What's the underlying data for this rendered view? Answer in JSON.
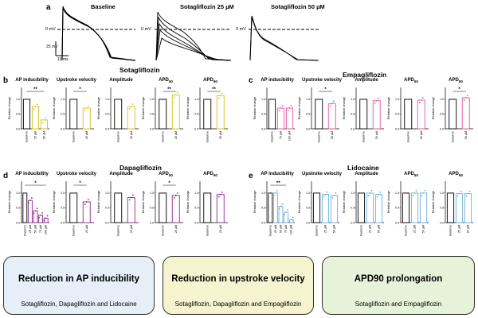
{
  "panel_a": {
    "label": "a",
    "traces": [
      "Baseline",
      "Sotagliflozin 25 µM",
      "Sotagliflozin 50 µM"
    ],
    "zero_mv": "0 mV",
    "scale_v": "25 mV",
    "scale_t": "10 ms"
  },
  "labels": {
    "b": "b",
    "c": "c",
    "d": "d",
    "e": "e"
  },
  "sections": {
    "sota": "Sotagliflozin",
    "empa": "Empagliflozin",
    "dapa": "Dapagliflozin",
    "lido": "Lidocaine"
  },
  "ylabel": "Relative change",
  "baseline_tick": "Baseline",
  "colors": {
    "sota": "#d4c21c",
    "empa": "#e0559a",
    "dapa": "#8b2a8e",
    "lido": "#6ab0d8"
  },
  "boxes": [
    {
      "title": "Reduction in AP inducibility",
      "subtitle": "Sotagliflozin, Dapagliflozin and Lidocaine",
      "bg": "#e6eef8"
    },
    {
      "title": "Reduction in upstroke velocity",
      "subtitle": "Sotagliflozin, Dapagliflozin and Empagliflozin",
      "bg": "#f6f3cf"
    },
    {
      "title": "APD90 prolongation",
      "subtitle": "Sotagliflozin and Empagliflozin",
      "bg": "#e6f3d9"
    }
  ],
  "chart_data": [
    {
      "group": "sota",
      "title": "AP inducibility",
      "type": "bar",
      "categories": [
        "Baseline",
        "25 µM",
        "50 µM"
      ],
      "values": [
        1,
        0.75,
        0.3
      ],
      "sig": "**",
      "sig_span": [
        0,
        2
      ],
      "ylim": [
        0,
        1.4
      ],
      "yticks": [
        "0.0",
        "0.5",
        "1.0"
      ]
    },
    {
      "group": "sota",
      "title": "Upstroke velocity",
      "type": "bar",
      "categories": [
        "Baseline",
        "25 µM"
      ],
      "values": [
        1,
        0.7
      ],
      "sig": "*",
      "sig_span": [
        0,
        1
      ],
      "ylim": [
        0,
        1.4
      ],
      "yticks": [
        "0.0",
        "0.5",
        "1.0"
      ]
    },
    {
      "group": "sota",
      "title": "Amplitude",
      "type": "bar",
      "categories": [
        "Baseline",
        "25 µM"
      ],
      "values": [
        1,
        0.75
      ],
      "sig": "",
      "sig_span": [
        0,
        1
      ],
      "ylim": [
        0,
        1.4
      ],
      "yticks": [
        "0.0",
        "0.5",
        "1.0"
      ]
    },
    {
      "group": "sota",
      "title": "APD50",
      "type": "bar",
      "categories": [
        "Baseline",
        "25 µM"
      ],
      "values": [
        1,
        1.15
      ],
      "sig": "**",
      "sig_span": [
        0,
        1
      ],
      "ylim": [
        0,
        1.4
      ],
      "yticks": [
        "0.0",
        "0.5",
        "1.0"
      ]
    },
    {
      "group": "sota",
      "title": "APD90",
      "type": "bar",
      "categories": [
        "Baseline",
        "25 µM"
      ],
      "values": [
        1,
        1.12
      ],
      "sig": "**",
      "sig_span": [
        0,
        1
      ],
      "ylim": [
        0,
        1.4
      ],
      "yticks": [
        "0.0",
        "0.5",
        "1.0"
      ]
    },
    {
      "group": "empa",
      "title": "AP inducibility",
      "type": "bar",
      "categories": [
        "Baseline",
        "70 µM",
        "100 µM"
      ],
      "values": [
        1,
        0.7,
        0.7
      ],
      "sig": "",
      "sig_span": [
        0,
        2
      ],
      "ylim": [
        0,
        1.4
      ],
      "yticks": [
        "0.0",
        "0.5",
        "1.0"
      ]
    },
    {
      "group": "empa",
      "title": "Upstroke velocity",
      "type": "bar",
      "categories": [
        "Baseline",
        "50 µM"
      ],
      "values": [
        1,
        0.85
      ],
      "sig": "*",
      "sig_span": [
        0,
        1
      ],
      "ylim": [
        0,
        1.4
      ],
      "yticks": [
        "0.0",
        "0.5",
        "1.0"
      ]
    },
    {
      "group": "empa",
      "title": "Amplitude",
      "type": "bar",
      "categories": [
        "Baseline",
        "50 µM"
      ],
      "values": [
        1,
        0.95
      ],
      "sig": "",
      "sig_span": [
        0,
        1
      ],
      "ylim": [
        0,
        1.4
      ],
      "yticks": [
        "0.0",
        "0.5",
        "1.0"
      ]
    },
    {
      "group": "empa",
      "title": "APD50",
      "type": "bar",
      "categories": [
        "Baseline",
        "50 µM"
      ],
      "values": [
        1,
        0.97
      ],
      "sig": "",
      "sig_span": [
        0,
        1
      ],
      "ylim": [
        0,
        1.4
      ],
      "yticks": [
        "0.0",
        "0.5",
        "1.0"
      ]
    },
    {
      "group": "empa",
      "title": "APD90",
      "type": "bar",
      "categories": [
        "Baseline",
        "50 µM"
      ],
      "values": [
        1,
        1.05
      ],
      "sig": "*",
      "sig_span": [
        0,
        1
      ],
      "ylim": [
        0,
        1.4
      ],
      "yticks": [
        "0.0",
        "0.5",
        "1.0"
      ]
    },
    {
      "group": "dapa",
      "title": "AP inducibility",
      "type": "bar",
      "categories": [
        "Baseline",
        "25 µM",
        "50 µM",
        "75 µM",
        "100 µM"
      ],
      "values": [
        1,
        0.75,
        0.4,
        0.25,
        0.15
      ],
      "sig": "*",
      "sig_span": [
        0,
        4
      ],
      "ylim": [
        0,
        1.4
      ],
      "yticks": [
        "0.0",
        "0.5",
        "1.0"
      ]
    },
    {
      "group": "dapa",
      "title": "Upstroke velocity",
      "type": "bar",
      "categories": [
        "Baseline",
        "25 µM"
      ],
      "values": [
        1,
        0.7
      ],
      "sig": "*",
      "sig_span": [
        0,
        1
      ],
      "ylim": [
        0,
        1.4
      ],
      "yticks": [
        "0.0",
        "0.5",
        "1.0"
      ]
    },
    {
      "group": "dapa",
      "title": "Amplitude",
      "type": "bar",
      "categories": [
        "Baseline",
        "25 µM"
      ],
      "values": [
        1,
        0.85
      ],
      "sig": "",
      "sig_span": [
        0,
        1
      ],
      "ylim": [
        0,
        1.4
      ],
      "yticks": [
        "0.0",
        "0.5",
        "1.0"
      ]
    },
    {
      "group": "dapa",
      "title": "APD50",
      "type": "bar",
      "categories": [
        "Baseline",
        "25 µM"
      ],
      "values": [
        1,
        0.92
      ],
      "sig": "*",
      "sig_span": [
        0,
        1
      ],
      "ylim": [
        0,
        1.4
      ],
      "yticks": [
        "0.0",
        "0.5",
        "1.0"
      ]
    },
    {
      "group": "dapa",
      "title": "APD90",
      "type": "bar",
      "categories": [
        "Baseline",
        "25 µM"
      ],
      "values": [
        1,
        0.95
      ],
      "sig": "",
      "sig_span": [
        0,
        1
      ],
      "ylim": [
        0,
        1.4
      ],
      "yticks": [
        "0.0",
        "0.5",
        "1.0"
      ]
    },
    {
      "group": "lido",
      "title": "AP inducibility",
      "type": "bar",
      "categories": [
        "Baseline",
        "25 µM",
        "50 µM",
        "75 µM",
        "100 µM"
      ],
      "values": [
        1,
        1,
        0.55,
        0.35,
        0.1
      ],
      "sig": "**",
      "sig_span": [
        0,
        3
      ],
      "ylim": [
        0,
        1.4
      ],
      "yticks": [
        "0.0",
        "0.5",
        "1.0"
      ]
    },
    {
      "group": "lido",
      "title": "Upstroke velocity",
      "type": "bar",
      "categories": [
        "Baseline",
        "25 µM",
        "50 µM"
      ],
      "values": [
        1,
        0.95,
        0.92
      ],
      "sig": "",
      "sig_span": [
        0,
        2
      ],
      "ylim": [
        0,
        1.4
      ],
      "yticks": [
        "0.0",
        "0.5",
        "1.0"
      ]
    },
    {
      "group": "lido",
      "title": "Amplitude",
      "type": "bar",
      "categories": [
        "Baseline",
        "25 µM",
        "50 µM"
      ],
      "values": [
        1,
        1,
        0.95
      ],
      "sig": "",
      "sig_span": [
        0,
        2
      ],
      "ylim": [
        0,
        1.4
      ],
      "yticks": [
        "0.0",
        "0.5",
        "1.0"
      ]
    },
    {
      "group": "lido",
      "title": "APD50",
      "type": "bar",
      "categories": [
        "Baseline",
        "25 µM",
        "50 µM"
      ],
      "values": [
        1,
        1,
        1
      ],
      "sig": "",
      "sig_span": [
        0,
        2
      ],
      "ylim": [
        0,
        1.4
      ],
      "yticks": [
        "0.0",
        "0.5",
        "1.0"
      ]
    },
    {
      "group": "lido",
      "title": "APD90",
      "type": "bar",
      "categories": [
        "Baseline",
        "25 µM",
        "50 µM"
      ],
      "values": [
        1,
        0.98,
        0.98
      ],
      "sig": "",
      "sig_span": [
        0,
        2
      ],
      "ylim": [
        0,
        1.4
      ],
      "yticks": [
        "0.0",
        "0.5",
        "1.0"
      ]
    }
  ]
}
